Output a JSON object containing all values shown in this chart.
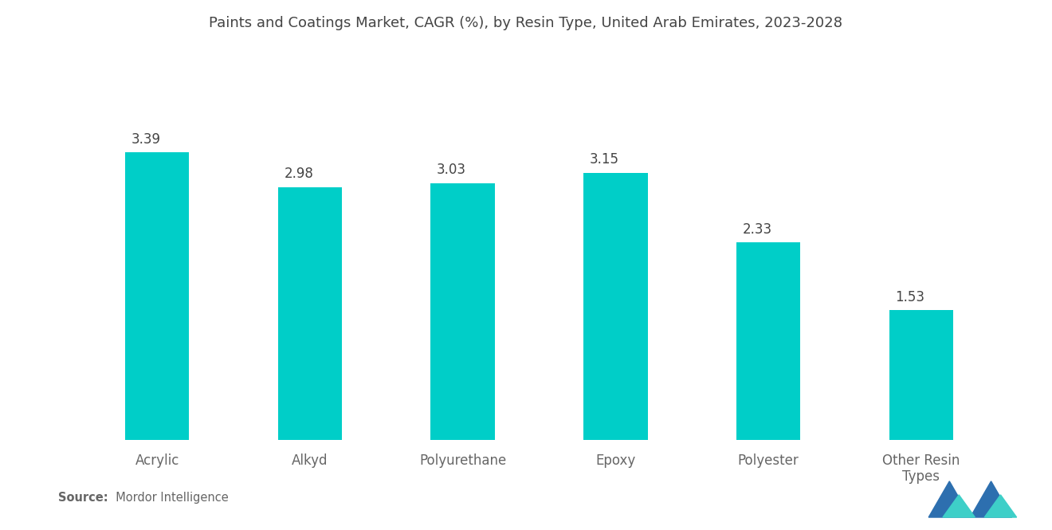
{
  "title": "Paints and Coatings Market, CAGR (%), by Resin Type, United Arab Emirates, 2023-2028",
  "categories": [
    "Acrylic",
    "Alkyd",
    "Polyurethane",
    "Epoxy",
    "Polyester",
    "Other Resin\nTypes"
  ],
  "values": [
    3.39,
    2.98,
    3.03,
    3.15,
    2.33,
    1.53
  ],
  "bar_color": "#00CEC8",
  "background_color": "#ffffff",
  "title_fontsize": 13.0,
  "label_fontsize": 12,
  "value_fontsize": 12,
  "ylim": [
    0,
    4.5
  ],
  "title_color": "#444444",
  "label_color": "#666666",
  "value_color": "#444444",
  "source_bold": "Source:",
  "source_normal": "  Mordor Intelligence",
  "source_fontsize": 10.5,
  "bar_width": 0.42
}
